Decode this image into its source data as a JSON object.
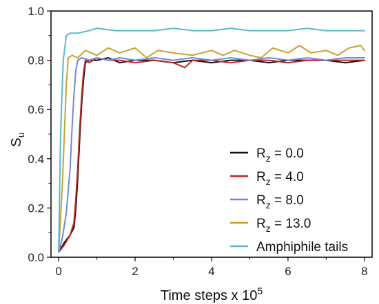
{
  "chart_data": {
    "type": "line",
    "xlabel": {
      "main": "Time steps x 10",
      "sup": "5"
    },
    "ylabel": {
      "main": "S",
      "sub": "u"
    },
    "xlim": [
      -0.2,
      8.2
    ],
    "ylim": [
      0.0,
      1.0
    ],
    "x_ticks": [
      "0",
      "2",
      "4",
      "6",
      "8"
    ],
    "y_ticks": [
      "0.0",
      "0.2",
      "0.4",
      "0.6",
      "0.8",
      "1.0"
    ],
    "grid": false,
    "legend_position": "bottom-right",
    "series": [
      {
        "label_main": "R",
        "label_sub": "z",
        "label_rest": " = 0.0",
        "color": "#111111",
        "points": [
          [
            0,
            0.02
          ],
          [
            0.15,
            0.06
          ],
          [
            0.3,
            0.09
          ],
          [
            0.4,
            0.12
          ],
          [
            0.45,
            0.2
          ],
          [
            0.5,
            0.32
          ],
          [
            0.55,
            0.48
          ],
          [
            0.6,
            0.62
          ],
          [
            0.65,
            0.72
          ],
          [
            0.7,
            0.79
          ],
          [
            0.8,
            0.8
          ],
          [
            1.0,
            0.8
          ],
          [
            1.3,
            0.81
          ],
          [
            1.6,
            0.79
          ],
          [
            2.0,
            0.8
          ],
          [
            2.5,
            0.8
          ],
          [
            3.0,
            0.79
          ],
          [
            3.5,
            0.8
          ],
          [
            4.0,
            0.79
          ],
          [
            4.5,
            0.8
          ],
          [
            5.0,
            0.8
          ],
          [
            5.5,
            0.79
          ],
          [
            6.0,
            0.8
          ],
          [
            6.5,
            0.8
          ],
          [
            7.0,
            0.8
          ],
          [
            7.5,
            0.79
          ],
          [
            8.0,
            0.8
          ]
        ]
      },
      {
        "label_main": "R",
        "label_sub": "z",
        "label_rest": " = 4.0",
        "color": "#c0241c",
        "points": [
          [
            0,
            0.02
          ],
          [
            0.15,
            0.05
          ],
          [
            0.3,
            0.09
          ],
          [
            0.4,
            0.14
          ],
          [
            0.45,
            0.24
          ],
          [
            0.5,
            0.36
          ],
          [
            0.55,
            0.52
          ],
          [
            0.6,
            0.65
          ],
          [
            0.65,
            0.75
          ],
          [
            0.7,
            0.8
          ],
          [
            0.8,
            0.79
          ],
          [
            1.0,
            0.81
          ],
          [
            1.3,
            0.8
          ],
          [
            1.6,
            0.8
          ],
          [
            2.0,
            0.79
          ],
          [
            2.5,
            0.8
          ],
          [
            3.0,
            0.79
          ],
          [
            3.3,
            0.77
          ],
          [
            3.5,
            0.8
          ],
          [
            4.0,
            0.8
          ],
          [
            4.5,
            0.79
          ],
          [
            5.0,
            0.8
          ],
          [
            5.5,
            0.8
          ],
          [
            6.0,
            0.79
          ],
          [
            6.5,
            0.8
          ],
          [
            7.0,
            0.8
          ],
          [
            7.5,
            0.8
          ],
          [
            8.0,
            0.8
          ]
        ]
      },
      {
        "label_main": "R",
        "label_sub": "z",
        "label_rest": " = 8.0",
        "color": "#6f87e0",
        "points": [
          [
            0,
            0.02
          ],
          [
            0.1,
            0.08
          ],
          [
            0.2,
            0.18
          ],
          [
            0.3,
            0.36
          ],
          [
            0.35,
            0.52
          ],
          [
            0.4,
            0.66
          ],
          [
            0.45,
            0.76
          ],
          [
            0.5,
            0.8
          ],
          [
            0.6,
            0.81
          ],
          [
            0.8,
            0.8
          ],
          [
            1.0,
            0.81
          ],
          [
            1.3,
            0.8
          ],
          [
            1.6,
            0.81
          ],
          [
            2.0,
            0.8
          ],
          [
            2.5,
            0.81
          ],
          [
            3.0,
            0.8
          ],
          [
            3.5,
            0.81
          ],
          [
            4.0,
            0.8
          ],
          [
            4.5,
            0.81
          ],
          [
            5.0,
            0.8
          ],
          [
            5.5,
            0.81
          ],
          [
            6.0,
            0.8
          ],
          [
            6.5,
            0.81
          ],
          [
            7.0,
            0.8
          ],
          [
            7.5,
            0.81
          ],
          [
            8.0,
            0.81
          ]
        ]
      },
      {
        "label_main": "R",
        "label_sub": "z",
        "label_rest": " = 13.0",
        "color": "#c9a227",
        "points": [
          [
            0,
            0.02
          ],
          [
            0.1,
            0.3
          ],
          [
            0.2,
            0.7
          ],
          [
            0.25,
            0.81
          ],
          [
            0.35,
            0.82
          ],
          [
            0.5,
            0.81
          ],
          [
            0.7,
            0.84
          ],
          [
            1.0,
            0.82
          ],
          [
            1.3,
            0.85
          ],
          [
            1.6,
            0.83
          ],
          [
            2.0,
            0.85
          ],
          [
            2.3,
            0.81
          ],
          [
            2.6,
            0.84
          ],
          [
            3.0,
            0.83
          ],
          [
            3.5,
            0.82
          ],
          [
            4.0,
            0.84
          ],
          [
            4.3,
            0.82
          ],
          [
            4.6,
            0.84
          ],
          [
            5.0,
            0.82
          ],
          [
            5.3,
            0.81
          ],
          [
            5.6,
            0.85
          ],
          [
            6.0,
            0.83
          ],
          [
            6.3,
            0.86
          ],
          [
            6.6,
            0.83
          ],
          [
            7.0,
            0.84
          ],
          [
            7.3,
            0.82
          ],
          [
            7.6,
            0.85
          ],
          [
            7.9,
            0.86
          ],
          [
            8.0,
            0.84
          ]
        ]
      },
      {
        "label_main": "Amphiphile tails",
        "label_sub": "",
        "label_rest": "",
        "color": "#58b9cc",
        "points": [
          [
            0,
            0.02
          ],
          [
            0.05,
            0.5
          ],
          [
            0.12,
            0.8
          ],
          [
            0.2,
            0.9
          ],
          [
            0.3,
            0.91
          ],
          [
            0.5,
            0.91
          ],
          [
            0.8,
            0.92
          ],
          [
            1.0,
            0.93
          ],
          [
            1.5,
            0.92
          ],
          [
            2.0,
            0.92
          ],
          [
            2.5,
            0.92
          ],
          [
            3.0,
            0.93
          ],
          [
            3.5,
            0.92
          ],
          [
            4.0,
            0.92
          ],
          [
            4.5,
            0.93
          ],
          [
            5.0,
            0.92
          ],
          [
            5.5,
            0.92
          ],
          [
            6.0,
            0.92
          ],
          [
            6.5,
            0.93
          ],
          [
            7.0,
            0.92
          ],
          [
            7.5,
            0.92
          ],
          [
            8.0,
            0.92
          ]
        ]
      }
    ]
  }
}
